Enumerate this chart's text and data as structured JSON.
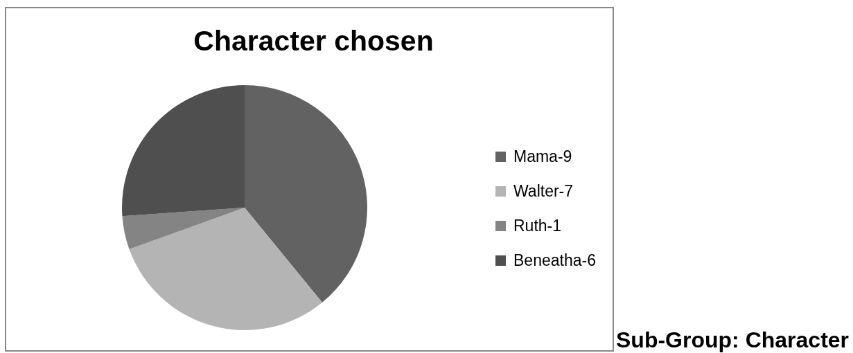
{
  "chart_data": {
    "type": "pie",
    "title": "Character chosen",
    "categories": [
      "Mama-9",
      "Walter-7",
      "Ruth-1",
      "Beneatha-6"
    ],
    "values": [
      39.1,
      30.4,
      4.4,
      26.1
    ],
    "colors": [
      "#626262",
      "#b4b4b4",
      "#848484",
      "#4f4f4f"
    ],
    "legend": "right",
    "annotations": [
      "Sub-Group: Character"
    ]
  }
}
